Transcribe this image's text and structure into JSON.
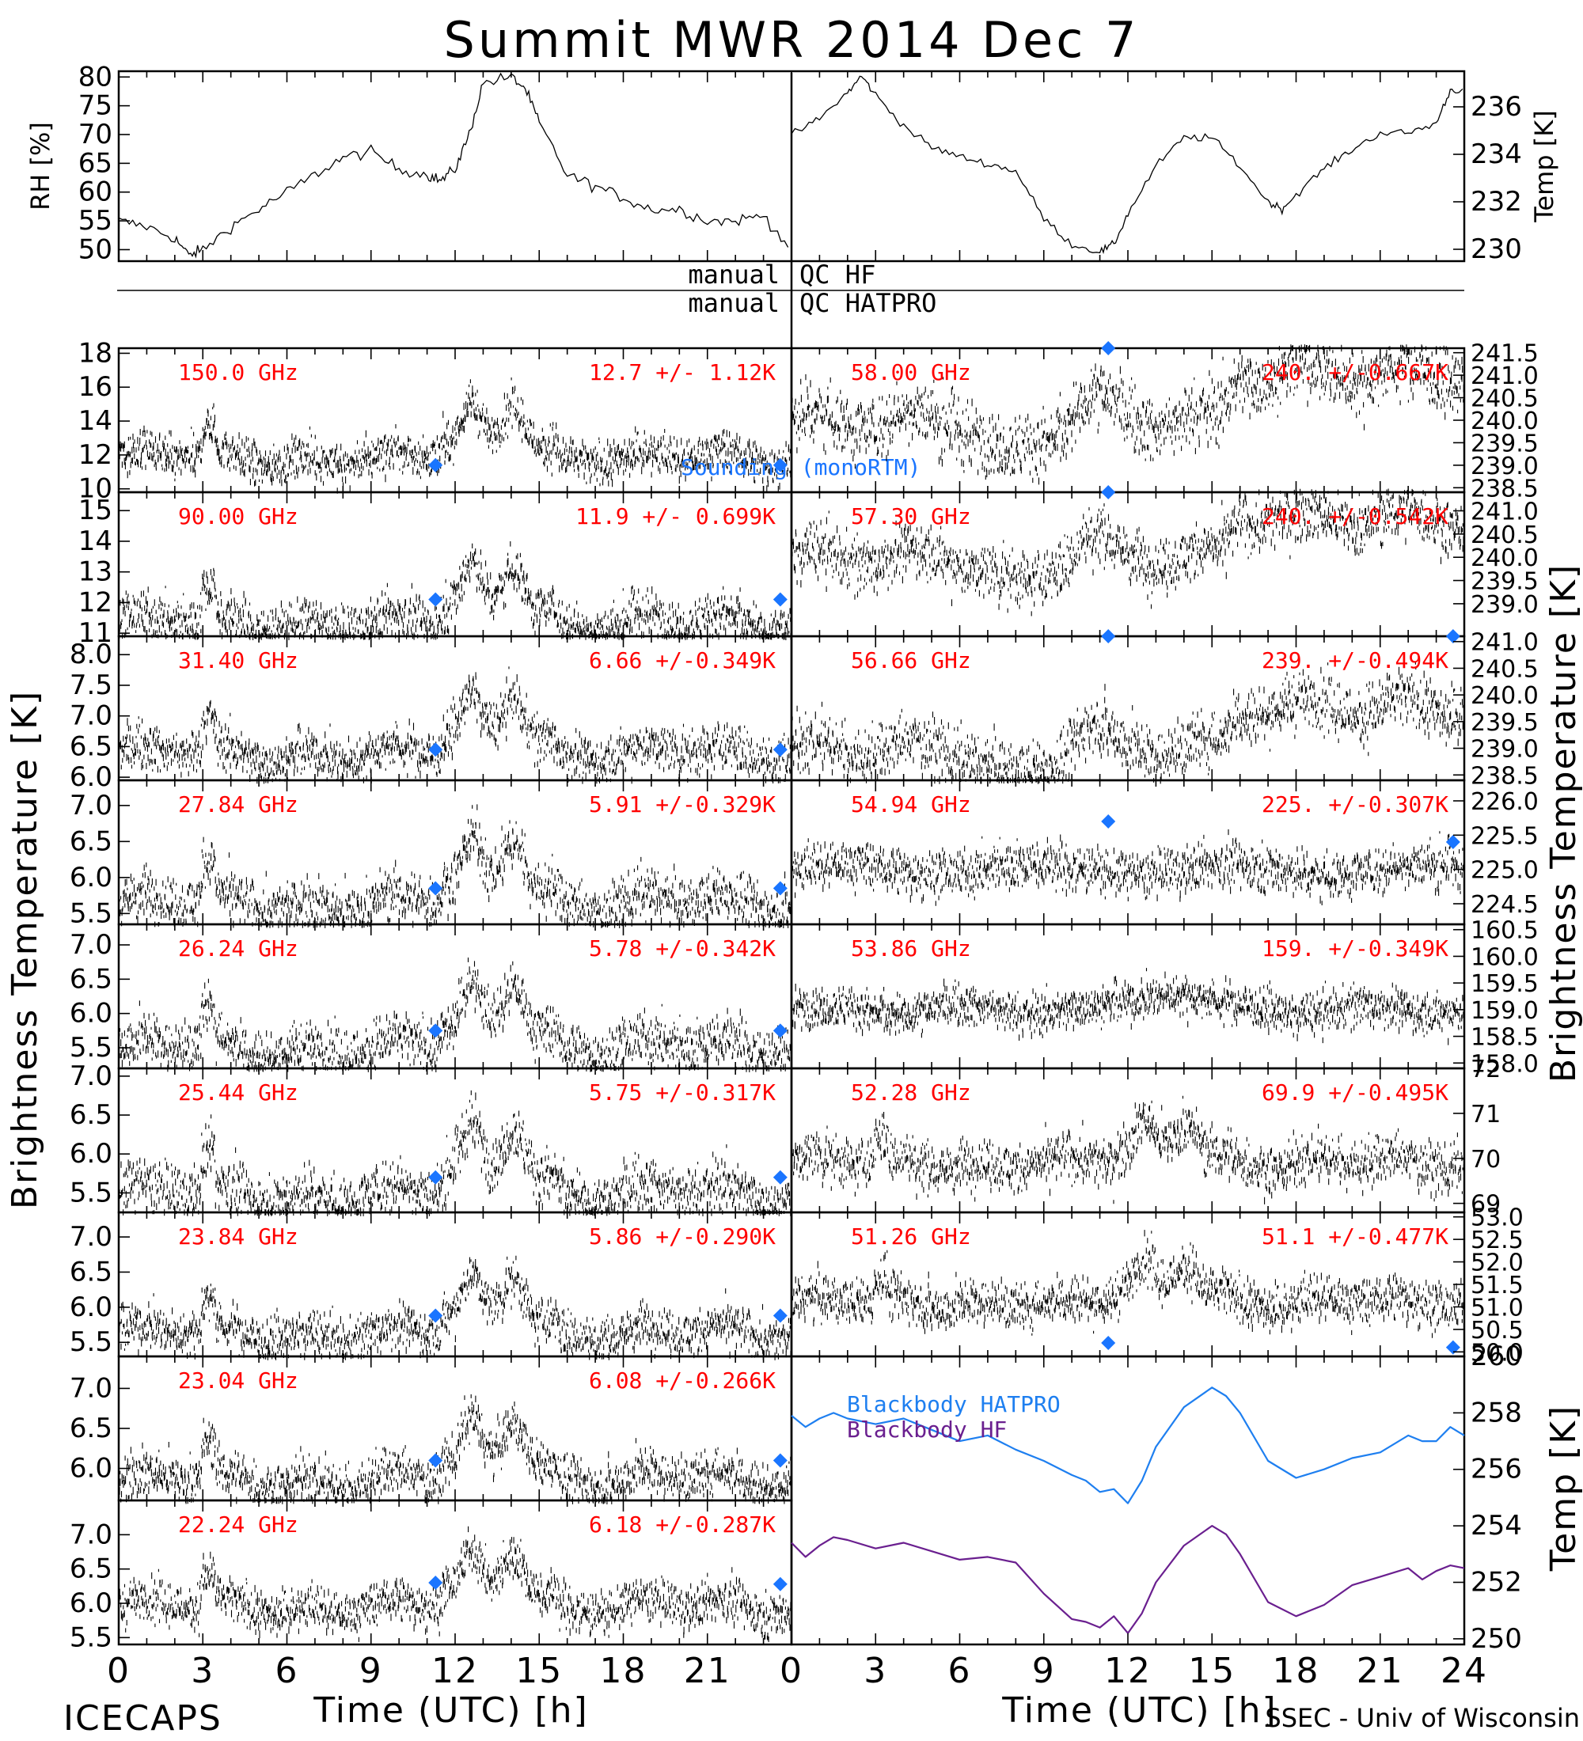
{
  "title": "Summit MWR 2014 Dec  7",
  "footer": {
    "left": "ICECAPS",
    "right": "SSEC - Univ of Wisconsin"
  },
  "xlabel": "Time (UTC) [h]",
  "xticks": [
    "0",
    "3",
    "6",
    "9",
    "12",
    "15",
    "18",
    "21",
    "24"
  ],
  "ylabel_left": "Brightness Temperature [K]",
  "ylabel_right": "Brightness Temperature [K]",
  "qc": {
    "left1": "manual",
    "right1": "QC HF",
    "left2": "manual",
    "right2": "QC HATPRO"
  },
  "colors": {
    "stat": "#ff0000",
    "sounding": "#1a75ff",
    "hatpro": "#1e7ff0",
    "hf": "#6a1f8f"
  },
  "legend": {
    "sounding": "Sounding (monoRTM)",
    "bb_hatpro": "Blackbody HATPRO",
    "bb_hf": "Blackbody HF"
  },
  "chart_data": [
    {
      "type": "line",
      "panel": "met",
      "ylabel_left": "RH [%]",
      "ylabel_right": "Temp [K]",
      "ylim_left": [
        48,
        81
      ],
      "ylim_right": [
        229.5,
        237.5
      ],
      "yticks_left": [
        "80",
        "75",
        "70",
        "65",
        "60",
        "55",
        "50"
      ],
      "yticks_right": [
        "236",
        "234",
        "232",
        "230"
      ],
      "series": [
        {
          "axis": "left",
          "x": [
            0,
            1,
            2,
            2.5,
            3,
            4,
            5,
            6,
            7,
            8,
            9,
            10,
            11,
            11.5,
            12,
            12.5,
            13,
            14,
            14.5,
            15,
            16,
            17,
            18,
            19,
            20,
            21,
            22,
            23,
            24
          ],
          "values": [
            55,
            54,
            52,
            49,
            50,
            54,
            57,
            60,
            63,
            66,
            67,
            64,
            63,
            62,
            64,
            70,
            79,
            80,
            78,
            72,
            63,
            61,
            59,
            57,
            57,
            55,
            55,
            56,
            50
          ]
        },
        {
          "axis": "right",
          "x": [
            0,
            1,
            2,
            2.5,
            3,
            4,
            5,
            6,
            7,
            8,
            9,
            10,
            11,
            11.5,
            12,
            13,
            14,
            15,
            16,
            17,
            17.5,
            18,
            19,
            20,
            21,
            22,
            23,
            23.5,
            24
          ],
          "values": [
            234.8,
            235.5,
            236.6,
            237.3,
            236.5,
            235.2,
            234.3,
            233.9,
            233.6,
            233.3,
            231.3,
            230.2,
            229.9,
            230.2,
            231.5,
            233.5,
            234.7,
            234.7,
            233.5,
            232.0,
            231.7,
            232.3,
            233.4,
            234.2,
            234.9,
            234.9,
            235.3,
            236.7,
            236.7
          ]
        }
      ]
    },
    {
      "type": "scatter",
      "column": "left",
      "sounding_x": [
        11.3,
        23.6
      ],
      "panels": [
        {
          "freq": "150.0 GHz",
          "stat": "12.7 +/-  1.12K",
          "ylim": [
            9.8,
            18.3
          ],
          "yticks": [
            "18",
            "16",
            "14",
            "12",
            "10"
          ],
          "mean": 12.7,
          "std": 1.12,
          "sounding": [
            11.4,
            11.4
          ]
        },
        {
          "freq": "90.00 GHz",
          "stat": "11.9 +/- 0.699K",
          "ylim": [
            10.9,
            15.6
          ],
          "yticks": [
            "15",
            "14",
            "13",
            "12",
            "11"
          ],
          "mean": 11.9,
          "std": 0.699,
          "sounding": [
            12.1,
            12.1
          ]
        },
        {
          "freq": "31.40 GHz",
          "stat": "6.66 +/-0.349K",
          "ylim": [
            5.95,
            8.3
          ],
          "yticks": [
            "8.0",
            "7.5",
            "7.0",
            "6.5",
            "6.0"
          ],
          "mean": 6.66,
          "std": 0.349,
          "sounding": [
            6.45,
            6.45
          ]
        },
        {
          "freq": "27.84 GHz",
          "stat": "5.91 +/-0.329K",
          "ylim": [
            5.35,
            7.35
          ],
          "yticks": [
            "7.0",
            "6.5",
            "6.0",
            "5.5"
          ],
          "mean": 5.91,
          "std": 0.329,
          "sounding": [
            5.85,
            5.85
          ]
        },
        {
          "freq": "26.24 GHz",
          "stat": "5.78 +/-0.342K",
          "ylim": [
            5.2,
            7.3
          ],
          "yticks": [
            "7.0",
            "6.5",
            "6.0",
            "5.5"
          ],
          "mean": 5.78,
          "std": 0.342,
          "sounding": [
            5.75,
            5.75
          ]
        },
        {
          "freq": "25.44 GHz",
          "stat": "5.75 +/-0.317K",
          "ylim": [
            5.25,
            7.1
          ],
          "yticks": [
            "7.0",
            "6.5",
            "6.0",
            "5.5"
          ],
          "mean": 5.75,
          "std": 0.317,
          "sounding": [
            5.7,
            5.7
          ]
        },
        {
          "freq": "23.84 GHz",
          "stat": "5.86 +/-0.290K",
          "ylim": [
            5.3,
            7.35
          ],
          "yticks": [
            "7.0",
            "6.5",
            "6.0",
            "5.5"
          ],
          "mean": 5.86,
          "std": 0.29,
          "sounding": [
            5.88,
            5.88
          ]
        },
        {
          "freq": "23.04 GHz",
          "stat": "6.08 +/-0.266K",
          "ylim": [
            5.6,
            7.4
          ],
          "yticks": [
            "7.0",
            "6.5",
            "6.0"
          ],
          "mean": 6.08,
          "std": 0.266,
          "sounding": [
            6.1,
            6.1
          ]
        },
        {
          "freq": "22.24 GHz",
          "stat": "6.18 +/-0.287K",
          "ylim": [
            5.4,
            7.5
          ],
          "yticks": [
            "7.0",
            "6.5",
            "6.0",
            "5.5"
          ],
          "mean": 6.18,
          "std": 0.287,
          "sounding": [
            6.3,
            6.28
          ]
        }
      ]
    },
    {
      "type": "scatter",
      "column": "right",
      "sounding_x": [
        11.3,
        23.6
      ],
      "panels": [
        {
          "freq": "58.00 GHz",
          "stat": "240. +/-0.667K",
          "ylim": [
            238.4,
            241.6
          ],
          "yticks": [
            "241.5",
            "241.0",
            "240.5",
            "240.0",
            "239.5",
            "239.0",
            "238.5"
          ],
          "mean": 240.0,
          "std": 0.667,
          "sounding": [
            241.6,
            null
          ]
        },
        {
          "freq": "57.30 GHz",
          "stat": "240. +/-0.542K",
          "ylim": [
            238.3,
            241.4
          ],
          "yticks": [
            "241.0",
            "240.5",
            "240.0",
            "239.5",
            "239.0"
          ],
          "mean": 240.0,
          "std": 0.542,
          "sounding": [
            241.4,
            null
          ]
        },
        {
          "freq": "56.66 GHz",
          "stat": "239. +/-0.494K",
          "ylim": [
            238.4,
            241.1
          ],
          "yticks": [
            "241.0",
            "240.5",
            "240.0",
            "239.5",
            "239.0",
            "238.5"
          ],
          "mean": 239.0,
          "std": 0.494,
          "sounding": [
            241.1,
            241.1
          ]
        },
        {
          "freq": "54.94 GHz",
          "stat": "225. +/-0.307K",
          "ylim": [
            224.2,
            226.3
          ],
          "yticks": [
            "226.0",
            "225.5",
            "225.0",
            "224.5"
          ],
          "mean": 225.0,
          "std": 0.307,
          "sounding": [
            225.7,
            225.4
          ]
        },
        {
          "freq": "53.86 GHz",
          "stat": "159. +/-0.349K",
          "ylim": [
            157.9,
            160.6
          ],
          "yticks": [
            "160.5",
            "160.0",
            "159.5",
            "159.0",
            "158.5",
            "158.0"
          ],
          "mean": 159.0,
          "std": 0.349,
          "sounding": [
            null,
            null
          ]
        },
        {
          "freq": "52.28 GHz",
          "stat": "69.9 +/-0.495K",
          "ylim": [
            68.8,
            72.0
          ],
          "yticks": [
            "72",
            "71",
            "70",
            "69"
          ],
          "mean": 69.9,
          "std": 0.495,
          "sounding": [
            null,
            null
          ]
        },
        {
          "freq": "51.26 GHz",
          "stat": "51.1 +/-0.477K",
          "ylim": [
            49.9,
            53.1
          ],
          "yticks": [
            "53.0",
            "52.5",
            "52.0",
            "51.5",
            "51.0",
            "50.5",
            "50.0"
          ],
          "mean": 51.1,
          "std": 0.477,
          "sounding": [
            50.2,
            50.1
          ]
        }
      ]
    },
    {
      "type": "line",
      "panel": "blackbody",
      "ylabel": "Temp [K]",
      "ylim": [
        249.8,
        260.0
      ],
      "yticks": [
        "260",
        "258",
        "256",
        "254",
        "252",
        "250"
      ],
      "series": [
        {
          "name": "Blackbody HATPRO",
          "x": [
            0,
            0.5,
            1,
            1.5,
            2,
            3,
            4,
            5,
            6,
            7,
            8,
            9,
            10,
            10.5,
            11,
            11.5,
            12,
            12.5,
            13,
            14,
            15,
            15.5,
            16,
            17,
            18,
            19,
            20,
            21,
            22,
            22.5,
            23,
            23.5,
            24
          ],
          "values": [
            257.9,
            257.5,
            257.8,
            258.0,
            257.8,
            257.6,
            257.8,
            257.4,
            257.0,
            257.2,
            256.7,
            256.3,
            255.8,
            255.6,
            255.2,
            255.3,
            254.8,
            255.6,
            256.8,
            258.2,
            258.9,
            258.6,
            258.0,
            256.3,
            255.7,
            256.0,
            256.4,
            256.6,
            257.2,
            257.0,
            257.0,
            257.5,
            257.2
          ]
        },
        {
          "name": "Blackbody HF",
          "x": [
            0,
            0.5,
            1,
            1.5,
            2,
            3,
            4,
            5,
            6,
            7,
            8,
            9,
            10,
            10.5,
            11,
            11.5,
            12,
            12.5,
            13,
            14,
            15,
            15.5,
            16,
            17,
            18,
            19,
            20,
            21,
            22,
            22.5,
            23,
            23.5,
            24
          ],
          "values": [
            253.4,
            252.9,
            253.3,
            253.6,
            253.5,
            253.2,
            253.4,
            253.1,
            252.8,
            252.9,
            252.7,
            251.6,
            250.7,
            250.6,
            250.4,
            250.8,
            250.2,
            250.9,
            252.0,
            253.3,
            254.0,
            253.7,
            253.0,
            251.3,
            250.8,
            251.2,
            251.9,
            252.2,
            252.5,
            252.1,
            252.4,
            252.6,
            252.5
          ]
        }
      ]
    }
  ]
}
